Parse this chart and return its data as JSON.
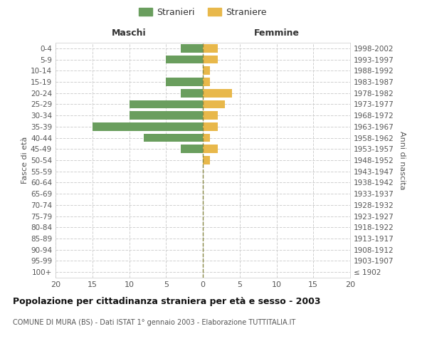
{
  "age_groups": [
    "100+",
    "95-99",
    "90-94",
    "85-89",
    "80-84",
    "75-79",
    "70-74",
    "65-69",
    "60-64",
    "55-59",
    "50-54",
    "45-49",
    "40-44",
    "35-39",
    "30-34",
    "25-29",
    "20-24",
    "15-19",
    "10-14",
    "5-9",
    "0-4"
  ],
  "birth_years": [
    "≤ 1902",
    "1903-1907",
    "1908-1912",
    "1913-1917",
    "1918-1922",
    "1923-1927",
    "1928-1932",
    "1933-1937",
    "1938-1942",
    "1943-1947",
    "1948-1952",
    "1953-1957",
    "1958-1962",
    "1963-1967",
    "1968-1972",
    "1973-1977",
    "1978-1982",
    "1983-1987",
    "1988-1992",
    "1993-1997",
    "1998-2002"
  ],
  "maschi": [
    0,
    0,
    0,
    0,
    0,
    0,
    0,
    0,
    0,
    0,
    0,
    3,
    8,
    15,
    10,
    10,
    3,
    5,
    0,
    5,
    3
  ],
  "femmine": [
    0,
    0,
    0,
    0,
    0,
    0,
    0,
    0,
    0,
    0,
    1,
    2,
    1,
    2,
    2,
    3,
    4,
    1,
    1,
    2,
    2
  ],
  "color_maschi": "#6a9e5e",
  "color_femmine": "#e8b84b",
  "title": "Popolazione per cittadinanza straniera per età e sesso - 2003",
  "subtitle": "COMUNE DI MURA (BS) - Dati ISTAT 1° gennaio 2003 - Elaborazione TUTTITALIA.IT",
  "xlabel_left": "Maschi",
  "xlabel_right": "Femmine",
  "ylabel_left": "Fasce di età",
  "ylabel_right": "Anni di nascita",
  "legend_maschi": "Stranieri",
  "legend_femmine": "Straniere",
  "xlim": 20,
  "background_color": "#ffffff",
  "grid_color": "#d0d0d0",
  "bar_height": 0.75
}
